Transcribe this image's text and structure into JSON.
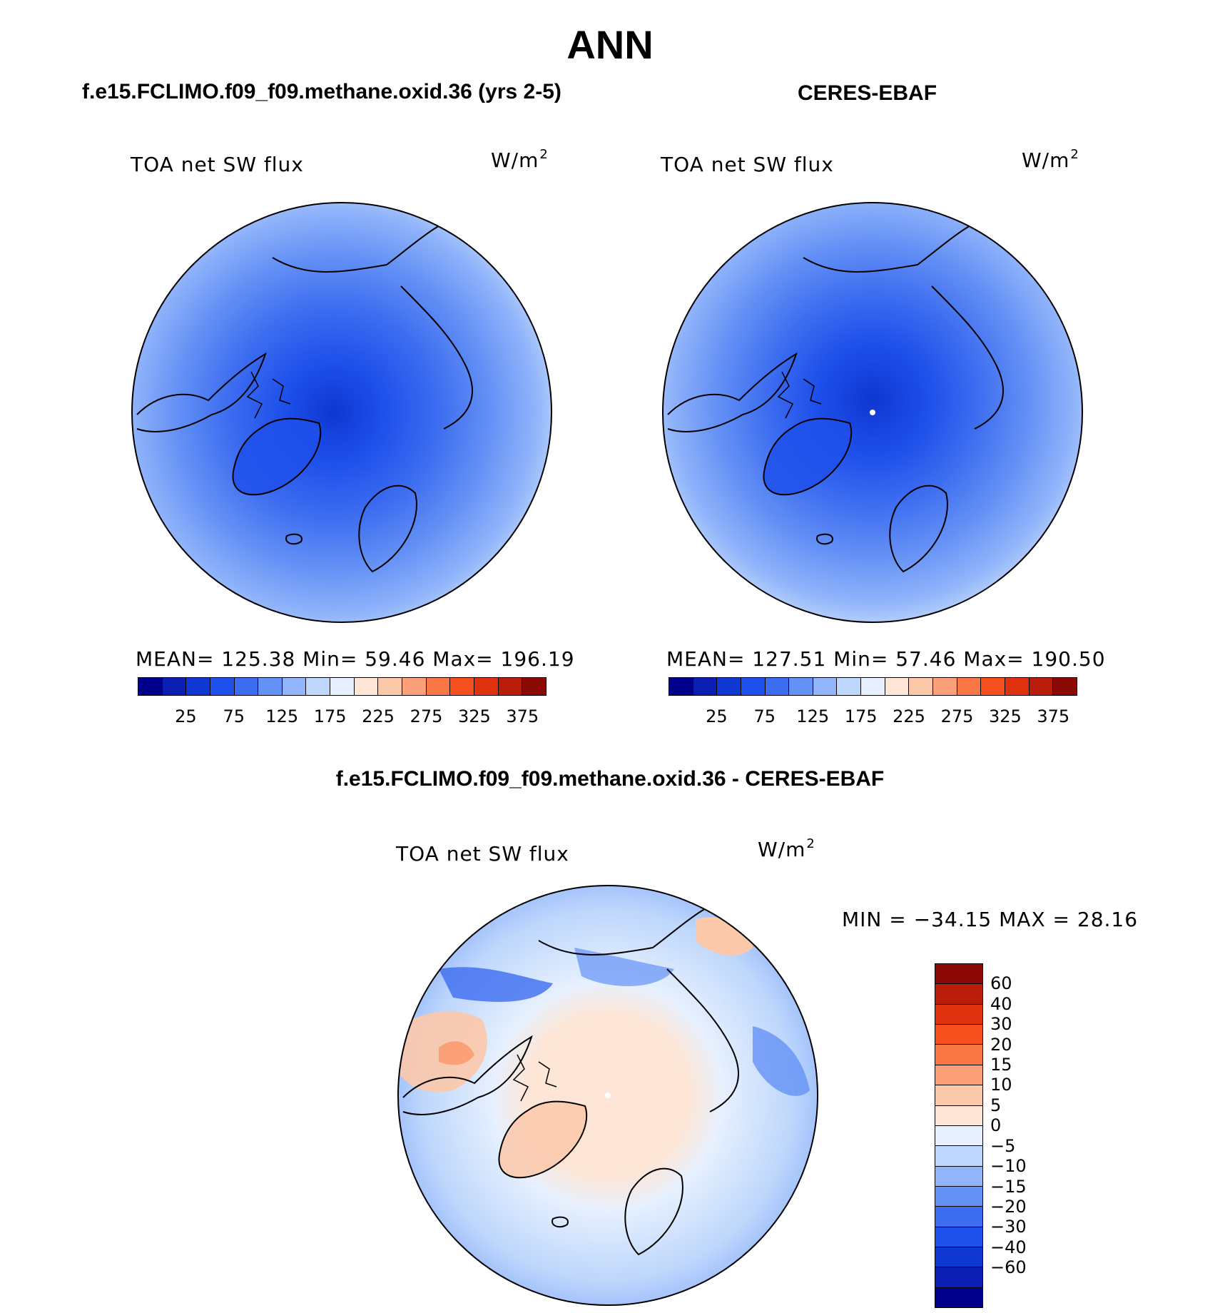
{
  "figure": {
    "title": "ANN"
  },
  "panels": [
    {
      "title": "f.e15.FCLIMO.f09_f09.methane.oxid.36 (yrs 2-5)",
      "variable": "TOA net SW flux",
      "units": "W/m",
      "units_superscript": "2",
      "stats": "MEAN= 125.38   Min=   59.46   Max= 196.19",
      "mean": 125.38,
      "min": 59.46,
      "max": 196.19,
      "map": {
        "projection": "north-polar-stereographic",
        "field_desc": "minimum over central Arctic Ocean and Greenland, increasing toward lower latitudes"
      }
    },
    {
      "title": "CERES-EBAF",
      "variable": "TOA net SW flux",
      "units": "W/m",
      "units_superscript": "2",
      "stats": "MEAN= 127.51   Min=   57.46   Max= 190.50",
      "mean": 127.51,
      "min": 57.46,
      "max": 190.5,
      "map": {
        "projection": "north-polar-stereographic",
        "field_desc": "minimum over central Arctic Ocean and Greenland, increasing toward lower latitudes"
      }
    }
  ],
  "abs_colorbar": {
    "colors": [
      "#00008b",
      "#0a1eb4",
      "#0f37d2",
      "#1e50eb",
      "#3c6cf0",
      "#6491f5",
      "#91b4fa",
      "#bed7fc",
      "#e6f0fe",
      "#fde6d6",
      "#fcc8aa",
      "#fba078",
      "#fa7846",
      "#f5501e",
      "#e1320f",
      "#b91e0a",
      "#8c0a05"
    ],
    "tick_labels": [
      "25",
      "75",
      "125",
      "175",
      "225",
      "275",
      "325",
      "375"
    ]
  },
  "diff_panel": {
    "title": "f.e15.FCLIMO.f09_f09.methane.oxid.36 - CERES-EBAF",
    "variable": "TOA net SW flux",
    "units": "W/m",
    "units_superscript": "2",
    "minmax": "MIN = −34.15 MAX =   28.16",
    "min": -34.15,
    "max": 28.16,
    "map": {
      "projection": "north-polar-stereographic",
      "field_desc": "positive (red) over central Arctic and Greenland, negative (blue) over northern land masses and oceans"
    }
  },
  "diff_colorbar": {
    "colors": [
      "#8c0a05",
      "#b91e0a",
      "#e1320f",
      "#f5501e",
      "#fa7846",
      "#fba078",
      "#fcc8aa",
      "#fde6d6",
      "#e6f0fe",
      "#bed7fc",
      "#91b4fa",
      "#6491f5",
      "#3c6cf0",
      "#1e50eb",
      "#0f37d2",
      "#0a1eb4",
      "#00008b"
    ],
    "tick_labels": [
      "60",
      "40",
      "30",
      "20",
      "15",
      "10",
      "5",
      "0",
      "−5",
      "−10",
      "−15",
      "−20",
      "−30",
      "−40",
      "−60"
    ]
  }
}
